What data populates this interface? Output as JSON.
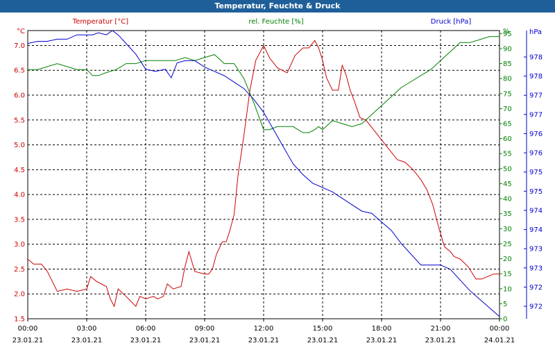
{
  "title": "Temperatur, Feuchte & Druck",
  "colors": {
    "temperature": "#cc0000",
    "humidity": "#008000",
    "pressure": "#0000cc",
    "grid": "#000000",
    "titlebar": "#1f5f99"
  },
  "chart_data": {
    "type": "line",
    "title": "Temperatur, Feuchte & Druck",
    "grid": true,
    "legend": "top",
    "x_ticks": [
      {
        "time": "00:00",
        "date": "23.01.21"
      },
      {
        "time": "03:00",
        "date": "23.01.21"
      },
      {
        "time": "06:00",
        "date": "23.01.21"
      },
      {
        "time": "09:00",
        "date": "23.01.21"
      },
      {
        "time": "12:00",
        "date": "23.01.21"
      },
      {
        "time": "15:00",
        "date": "23.01.21"
      },
      {
        "time": "18:00",
        "date": "23.01.21"
      },
      {
        "time": "21:00",
        "date": "23.01.21"
      },
      {
        "time": "00:00",
        "date": "24.01.21"
      }
    ],
    "xlim": [
      0,
      24
    ],
    "axes": {
      "temperature": {
        "unit": "°C",
        "ylim": [
          1.5,
          7.3
        ],
        "ticks": [
          "1.5",
          "2.0",
          "2.5",
          "3.0",
          "3.5",
          "4.0",
          "4.5",
          "5.0",
          "5.5",
          "6.0",
          "6.5",
          "7.0"
        ]
      },
      "humidity": {
        "unit": "%",
        "ylim": [
          0,
          96
        ],
        "ticks": [
          "0",
          "5",
          "10",
          "15",
          "20",
          "25",
          "30",
          "35",
          "40",
          "45",
          "50",
          "55",
          "60",
          "65",
          "70",
          "75",
          "80",
          "85",
          "90",
          "95"
        ]
      },
      "pressure": {
        "unit": "hPa",
        "ylim": [
          971.7,
          978.4
        ],
        "ticks": [
          "972",
          "972",
          "973",
          "973",
          "974",
          "974",
          "975",
          "975",
          "976",
          "976",
          "977",
          "977",
          "978",
          "978"
        ]
      }
    },
    "series": [
      {
        "name": "Temperatur [°C]",
        "axis": "temperature",
        "x": [
          0,
          0.3,
          0.7,
          1.0,
          1.5,
          2.0,
          2.5,
          3.0,
          3.2,
          3.5,
          4.0,
          4.2,
          4.4,
          4.6,
          5.0,
          5.5,
          5.7,
          6.0,
          6.4,
          6.6,
          6.9,
          7.1,
          7.4,
          7.8,
          8.0,
          8.2,
          8.5,
          9.0,
          9.2,
          9.4,
          9.6,
          9.9,
          10.1,
          10.3,
          10.5,
          10.7,
          11.0,
          11.3,
          11.6,
          12.0,
          12.3,
          12.7,
          13.2,
          13.6,
          14.0,
          14.3,
          14.6,
          14.8,
          15.0,
          15.2,
          15.5,
          15.8,
          16.0,
          16.2,
          16.4,
          16.6,
          16.9,
          17.2,
          17.6,
          18.0,
          18.4,
          18.8,
          19.2,
          19.6,
          20.0,
          20.3,
          20.6,
          20.9,
          21.2,
          21.5,
          21.7,
          22.0,
          22.4,
          22.8,
          23.1,
          23.4,
          23.7,
          24.0
        ],
        "values": [
          2.7,
          2.6,
          2.6,
          2.45,
          2.05,
          2.1,
          2.05,
          2.1,
          2.35,
          2.25,
          2.15,
          1.9,
          1.75,
          2.1,
          1.95,
          1.75,
          1.95,
          1.9,
          1.95,
          1.9,
          1.95,
          2.2,
          2.1,
          2.15,
          2.55,
          2.85,
          2.45,
          2.4,
          2.4,
          2.5,
          2.8,
          3.05,
          3.05,
          3.3,
          3.6,
          4.4,
          5.2,
          6.1,
          6.7,
          7.0,
          6.75,
          6.55,
          6.45,
          6.8,
          6.95,
          6.95,
          7.1,
          6.95,
          6.7,
          6.35,
          6.1,
          6.1,
          6.6,
          6.4,
          6.1,
          5.9,
          5.55,
          5.5,
          5.3,
          5.1,
          4.9,
          4.7,
          4.65,
          4.5,
          4.3,
          4.1,
          3.8,
          3.35,
          2.95,
          2.85,
          2.75,
          2.7,
          2.55,
          2.3,
          2.3,
          2.35,
          2.4,
          2.4
        ]
      },
      {
        "name": "rel. Feuchte [%]",
        "axis": "humidity",
        "x": [
          0,
          0.5,
          1.0,
          1.5,
          2.0,
          2.5,
          3.0,
          3.3,
          3.6,
          4.0,
          4.5,
          5.0,
          5.5,
          6.0,
          6.5,
          7.0,
          7.5,
          8.0,
          8.5,
          9.0,
          9.5,
          10.0,
          10.5,
          11.0,
          11.5,
          12.0,
          12.3,
          12.7,
          13.0,
          13.5,
          14.0,
          14.3,
          14.6,
          14.8,
          15.0,
          15.5,
          16.0,
          16.5,
          17.0,
          17.5,
          18.0,
          18.5,
          19.0,
          19.5,
          20.0,
          20.5,
          21.0,
          21.5,
          22.0,
          22.5,
          23.0,
          23.5,
          24.0
        ],
        "values": [
          83,
          83,
          84,
          85,
          84,
          83,
          83,
          81,
          81,
          82,
          83,
          85,
          85,
          86,
          86,
          86,
          86,
          87,
          86,
          87,
          88,
          85,
          85,
          80,
          72,
          63,
          63,
          64,
          64,
          64,
          62,
          62,
          63,
          64,
          63,
          66,
          65,
          64,
          65,
          68,
          71,
          74,
          77,
          79,
          81,
          83,
          86,
          89,
          92,
          92,
          93,
          94,
          94
        ]
      },
      {
        "name": "Druck [hPa]",
        "axis": "pressure",
        "x": [
          0,
          0.5,
          1.0,
          1.5,
          2.0,
          2.5,
          3.0,
          3.3,
          3.6,
          4.0,
          4.3,
          4.6,
          5.0,
          5.5,
          6.0,
          6.5,
          7.0,
          7.3,
          7.6,
          8.0,
          8.5,
          9.0,
          9.5,
          10.0,
          10.5,
          11.0,
          11.5,
          12.0,
          12.5,
          13.0,
          13.5,
          14.0,
          14.5,
          15.0,
          15.5,
          16.0,
          16.5,
          17.0,
          17.5,
          18.0,
          18.5,
          19.0,
          19.5,
          20.0,
          20.5,
          21.0,
          21.5,
          22.0,
          22.5,
          23.0,
          23.5,
          24.0
        ],
        "values": [
          978.1,
          978.15,
          978.15,
          978.2,
          978.2,
          978.3,
          978.3,
          978.3,
          978.35,
          978.3,
          978.4,
          978.3,
          978.1,
          977.85,
          977.5,
          977.45,
          977.5,
          977.3,
          977.65,
          977.7,
          977.7,
          977.55,
          977.45,
          977.35,
          977.2,
          977.05,
          976.8,
          976.5,
          976.1,
          975.7,
          975.3,
          975.05,
          974.85,
          974.75,
          974.65,
          974.5,
          974.35,
          974.2,
          974.15,
          973.95,
          973.75,
          973.45,
          973.2,
          972.95,
          972.95,
          972.95,
          972.85,
          972.6,
          972.35,
          972.15,
          971.95,
          971.75
        ]
      }
    ]
  }
}
